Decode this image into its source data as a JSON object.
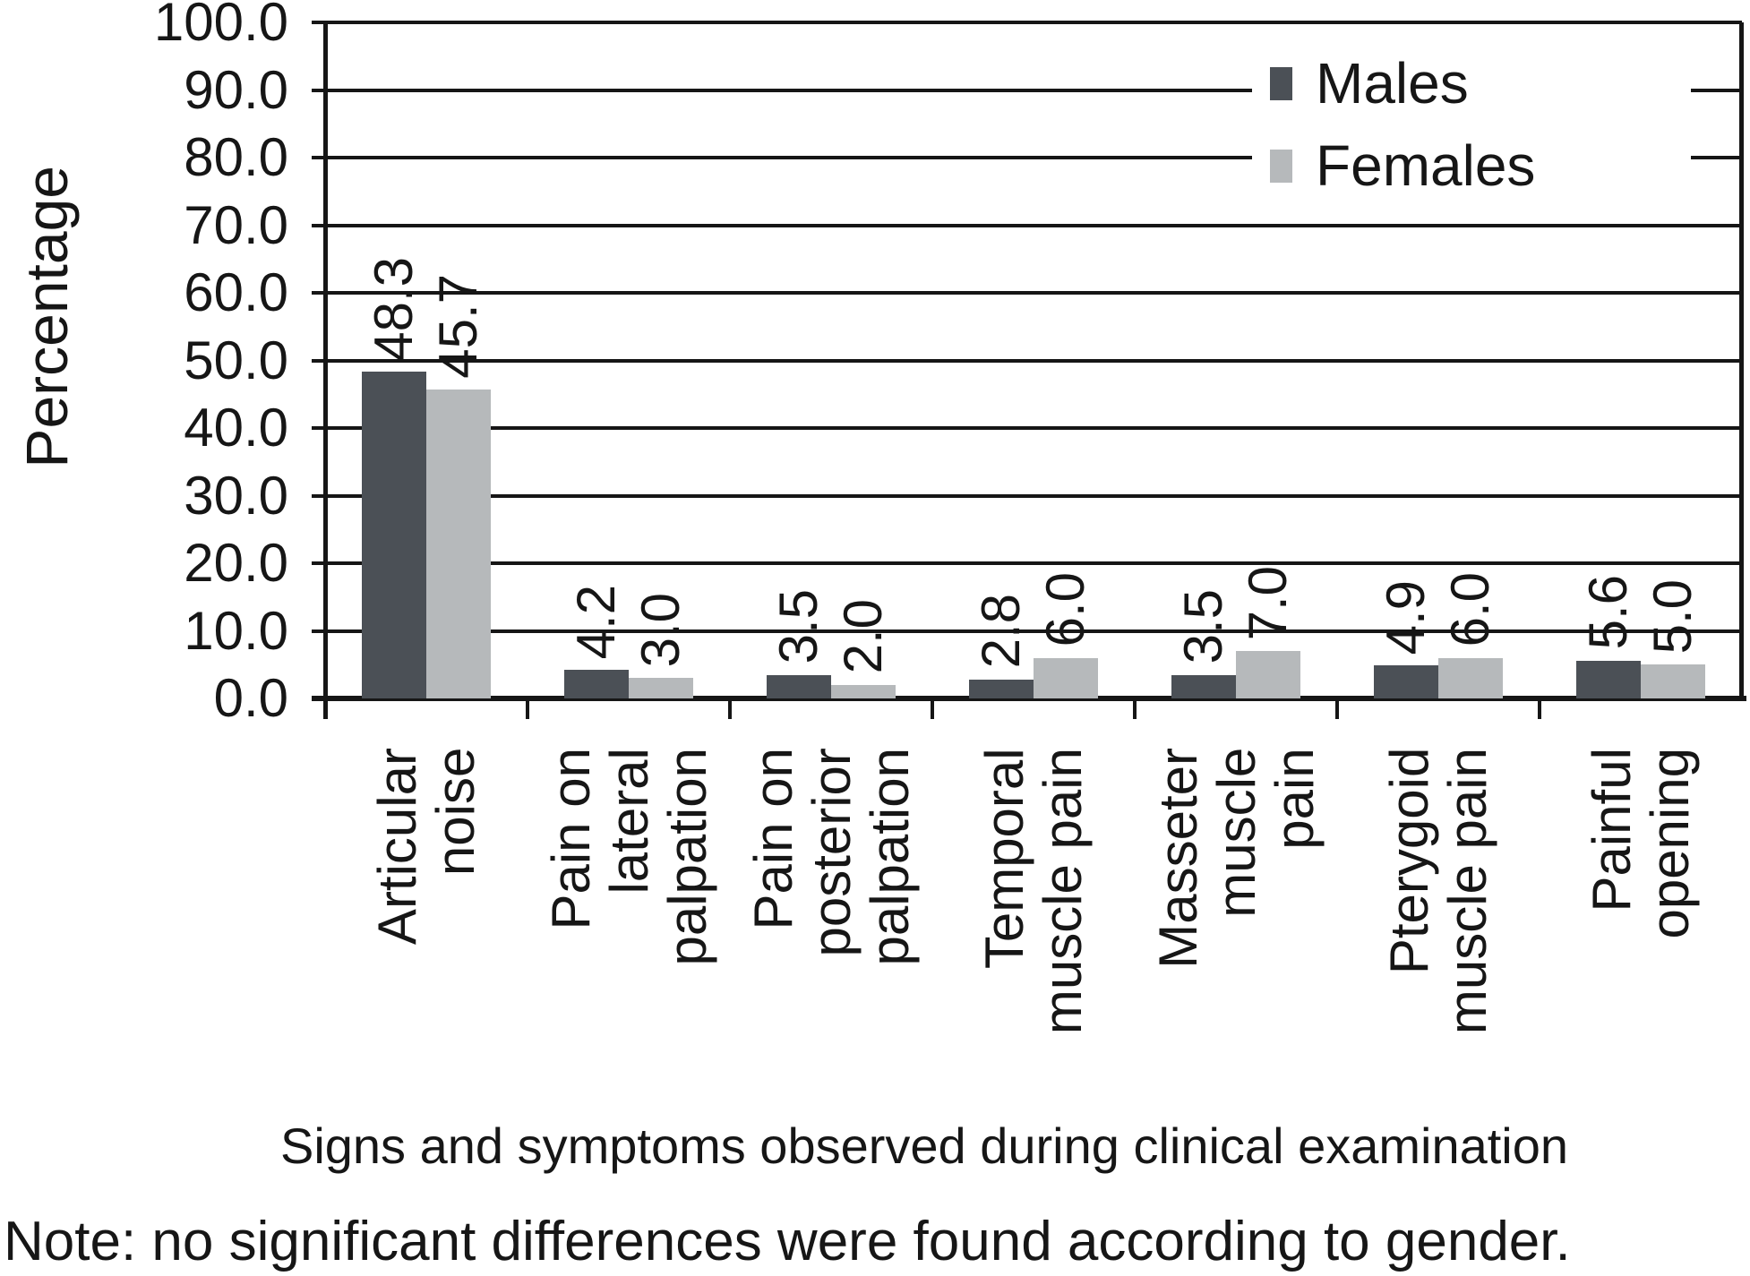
{
  "chart_data": {
    "type": "bar",
    "title": "",
    "xlabel": "Signs and symptoms observed during clinical examination",
    "ylabel": "Percentage",
    "ylim": [
      0,
      100
    ],
    "ytick_step": 10,
    "ytick_format": "one_decimal",
    "grid": true,
    "legend_position": "inside-top-right",
    "categories": [
      {
        "lines": [
          "Articular",
          "noise"
        ]
      },
      {
        "lines": [
          "Pain on",
          "lateral",
          "palpation"
        ]
      },
      {
        "lines": [
          "Pain on",
          "posterior",
          "palpation"
        ]
      },
      {
        "lines": [
          "Temporal",
          "muscle pain"
        ]
      },
      {
        "lines": [
          "Masseter",
          "muscle",
          "pain"
        ]
      },
      {
        "lines": [
          "Pterygoid",
          "muscle pain"
        ]
      },
      {
        "lines": [
          "Painful",
          "opening"
        ]
      }
    ],
    "series": [
      {
        "name": "Males",
        "color": "#4b5056",
        "values": [
          48.3,
          4.2,
          3.5,
          2.8,
          3.5,
          4.9,
          5.6
        ]
      },
      {
        "name": "Females",
        "color": "#b6b9bb",
        "values": [
          45.7,
          3.0,
          2.0,
          6.0,
          7.0,
          6.0,
          5.0
        ]
      }
    ],
    "value_labels_shown": true,
    "axis_color": "#161616"
  },
  "note": {
    "text": "Note: no significant differences were found according to gender."
  }
}
